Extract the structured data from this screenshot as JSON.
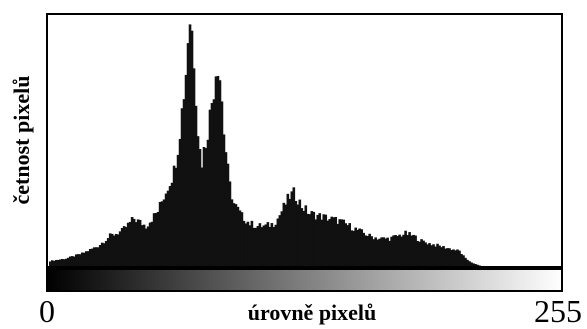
{
  "chart_data": {
    "type": "bar",
    "title": "",
    "xlabel": "úrovně pixelů",
    "ylabel": "četnost pixelů",
    "xlim": [
      0,
      255
    ],
    "ylim": [
      0,
      100
    ],
    "x_ticks": [
      "0",
      "255"
    ],
    "grid": false,
    "legend": "none",
    "gradient": {
      "from": "#000000",
      "to": "#ffffff"
    },
    "bar_color": "#111111",
    "profile": [
      [
        0,
        2
      ],
      [
        8,
        3
      ],
      [
        16,
        5
      ],
      [
        24,
        8
      ],
      [
        30,
        12
      ],
      [
        36,
        14
      ],
      [
        42,
        19
      ],
      [
        48,
        16
      ],
      [
        54,
        22
      ],
      [
        58,
        30
      ],
      [
        62,
        38
      ],
      [
        64,
        48
      ],
      [
        66,
        62
      ],
      [
        68,
        78
      ],
      [
        69,
        92
      ],
      [
        70,
        99
      ],
      [
        71,
        94
      ],
      [
        72,
        84
      ],
      [
        73,
        70
      ],
      [
        74,
        55
      ],
      [
        75,
        46
      ],
      [
        76,
        42
      ],
      [
        78,
        50
      ],
      [
        80,
        60
      ],
      [
        82,
        72
      ],
      [
        83,
        79
      ],
      [
        84,
        82
      ],
      [
        85,
        76
      ],
      [
        86,
        66
      ],
      [
        87,
        54
      ],
      [
        88,
        46
      ],
      [
        89,
        38
      ],
      [
        90,
        32
      ],
      [
        92,
        25
      ],
      [
        96,
        20
      ],
      [
        100,
        17
      ],
      [
        104,
        16
      ],
      [
        108,
        16
      ],
      [
        112,
        17
      ],
      [
        114,
        19
      ],
      [
        116,
        22
      ],
      [
        118,
        25
      ],
      [
        120,
        28
      ],
      [
        122,
        29
      ],
      [
        124,
        27
      ],
      [
        126,
        24
      ],
      [
        130,
        21
      ],
      [
        135,
        20
      ],
      [
        140,
        19
      ],
      [
        145,
        18
      ],
      [
        150,
        16
      ],
      [
        155,
        14
      ],
      [
        160,
        12
      ],
      [
        165,
        11
      ],
      [
        170,
        11
      ],
      [
        174,
        12
      ],
      [
        178,
        13
      ],
      [
        182,
        12
      ],
      [
        186,
        10
      ],
      [
        190,
        9
      ],
      [
        195,
        8
      ],
      [
        200,
        7
      ],
      [
        205,
        6
      ],
      [
        208,
        3
      ],
      [
        212,
        1
      ],
      [
        216,
        0
      ],
      [
        255,
        0
      ]
    ]
  }
}
